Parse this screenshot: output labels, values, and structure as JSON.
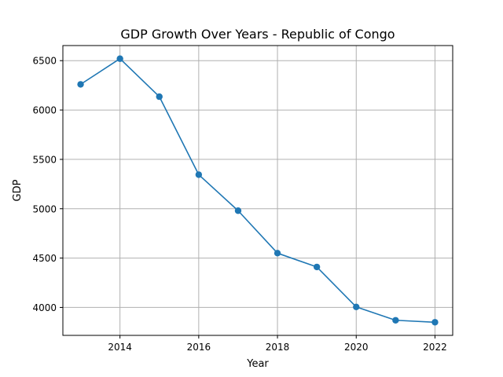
{
  "chart_data": {
    "type": "line",
    "title": "GDP Growth Over Years - Republic of Congo",
    "xlabel": "Year",
    "ylabel": "GDP",
    "x": [
      2013,
      2014,
      2015,
      2016,
      2017,
      2018,
      2019,
      2020,
      2021,
      2022
    ],
    "series": [
      {
        "values": [
          6260,
          6520,
          6135,
          5345,
          4980,
          4550,
          4410,
          4005,
          3870,
          3850
        ],
        "color": "#1f77b4"
      }
    ],
    "xlim": [
      2012.55,
      2022.45
    ],
    "ylim": [
      3717,
      6653
    ],
    "xticks": [
      2014,
      2016,
      2018,
      2020,
      2022
    ],
    "xtick_labels": [
      "2014",
      "2016",
      "2018",
      "2020",
      "2022"
    ],
    "yticks": [
      4000,
      4500,
      5000,
      5500,
      6000,
      6500
    ],
    "ytick_labels": [
      "4000",
      "4500",
      "5000",
      "5500",
      "6000",
      "6500"
    ],
    "grid": true,
    "marker": "circle"
  }
}
